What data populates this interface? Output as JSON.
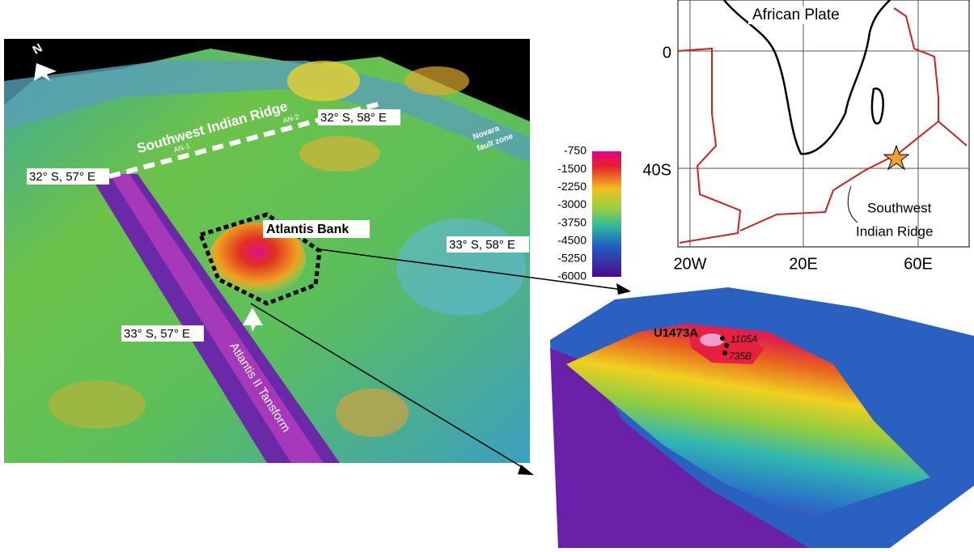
{
  "bathymetry_map": {
    "north_label": "N",
    "ridge_label": "Southwest Indian Ridge",
    "profiles": [
      "AN-1",
      "AN-2"
    ],
    "fault_zone": [
      "Novara",
      "fault zone"
    ],
    "coordinates": [
      "32° S, 57° E",
      "32° S, 58° E",
      "33° S, 58° E",
      "33° S, 57° E"
    ],
    "bank_label": "Atlantis Bank",
    "transform_label": "Atlantis II Tansform"
  },
  "depth_scale": {
    "ticks": [
      -750,
      -1500,
      -2250,
      -3000,
      -3750,
      -4500,
      -5250,
      -6000
    ]
  },
  "location_map": {
    "plate_label": "African Plate",
    "ridge_label": [
      "Southwest",
      "Indian Ridge"
    ],
    "y_labels": [
      "0",
      "40S"
    ],
    "x_labels": [
      "20W",
      "20E",
      "60E"
    ]
  },
  "bank_detail": {
    "sites": [
      "U1473A",
      "1105A",
      "735B"
    ]
  }
}
